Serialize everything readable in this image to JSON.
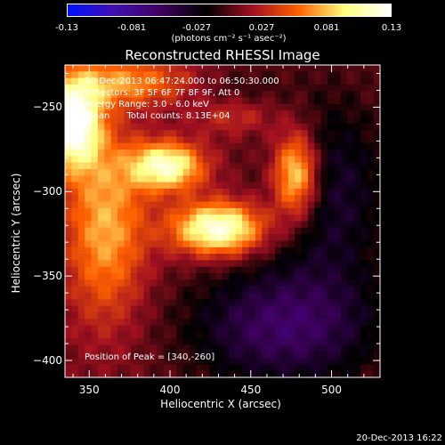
{
  "colorbar": {
    "ticks": [
      "-0.13",
      "-0.081",
      "-0.027",
      "0.027",
      "0.081",
      "0.13"
    ],
    "units": "(photons cm⁻² s⁻¹ asec⁻²)",
    "colors": [
      "#0010ff",
      "#4010b0",
      "#400060",
      "#000000",
      "#a01020",
      "#ff6000",
      "#ffff80",
      "#ffffff"
    ]
  },
  "title": "Reconstructed RHESSI Image",
  "info": {
    "line1": "20-Dec-2013 06:47:24.000 to 06:50:30.000",
    "line2": "Detectors: 3F 5F 6F 7F 8F 9F, Att 0",
    "line3": "Energy Range: 3.0 - 6.0 keV",
    "line4": "Clean      Total counts: 8.13E+04"
  },
  "peak": "Position of Peak = [340,-260]",
  "timestamp": "20-Dec-2013 16:22",
  "chart_data": {
    "type": "heatmap",
    "title": "Reconstructed RHESSI Image",
    "xlabel": "Heliocentric X (arcsec)",
    "ylabel": "Heliocentric Y (arcsec)",
    "xlim": [
      335,
      530
    ],
    "ylim": [
      -410,
      -225
    ],
    "xticks": [
      350,
      400,
      450,
      500
    ],
    "yticks": [
      -250,
      -300,
      -350,
      -400
    ],
    "xtick_labels": [
      "350",
      "400",
      "450",
      "500"
    ],
    "ytick_labels": [
      "-250",
      "-300",
      "-350",
      "-400"
    ],
    "zlim": [
      -0.13,
      0.13
    ],
    "peak_position": [
      340,
      -260
    ],
    "sources": [
      {
        "x": 340,
        "y": -260,
        "sx": 12,
        "sy": 18,
        "amp": 0.13
      },
      {
        "x": 398,
        "y": -285,
        "sx": 16,
        "sy": 10,
        "amp": 0.11
      },
      {
        "x": 430,
        "y": -322,
        "sx": 20,
        "sy": 11,
        "amp": 0.12
      },
      {
        "x": 478,
        "y": -290,
        "sx": 10,
        "sy": 18,
        "amp": 0.1
      },
      {
        "x": 360,
        "y": -320,
        "sx": 18,
        "sy": 40,
        "amp": 0.07
      },
      {
        "x": 372,
        "y": -235,
        "sx": 30,
        "sy": 10,
        "amp": 0.06
      },
      {
        "x": 440,
        "y": -255,
        "sx": 18,
        "sy": 8,
        "amp": 0.03
      },
      {
        "x": 470,
        "y": -380,
        "sx": 40,
        "sy": 25,
        "amp": -0.06
      },
      {
        "x": 500,
        "y": -300,
        "sx": 25,
        "sy": 40,
        "amp": -0.04
      },
      {
        "x": 440,
        "y": -240,
        "sx": 20,
        "sy": 10,
        "amp": -0.015
      }
    ]
  }
}
